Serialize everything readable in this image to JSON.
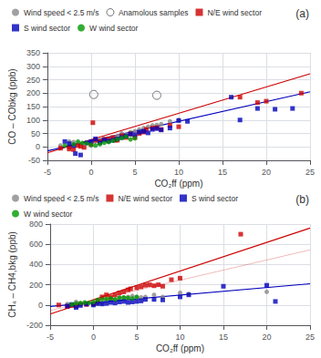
{
  "chart_data": [
    {
      "type": "scatter",
      "title": "(a)",
      "xlabel": "CO₂ff (ppm)",
      "ylabel": "CO – CObkg (ppb)",
      "xlim": [
        -5,
        25
      ],
      "ylim": [
        -50,
        350
      ],
      "xticks": [
        -5,
        0,
        5,
        10,
        15,
        20,
        25
      ],
      "yticks": [
        -50,
        0,
        50,
        100,
        150,
        200,
        250,
        300,
        350
      ],
      "grid": true,
      "legend": "upper left",
      "series": [
        {
          "name": "Wind speed < 2.5 m/s",
          "color": "#888888",
          "marker": "circle",
          "x": [
            -3.5,
            -2.5,
            -2,
            -1.5,
            -1,
            0,
            0.5,
            1,
            1.5,
            2,
            2.5,
            3,
            3.5,
            4,
            4.5,
            5,
            5.5,
            6,
            6.5,
            7,
            7.5,
            8,
            9,
            10
          ],
          "values": [
            5,
            20,
            18,
            12,
            10,
            5,
            20,
            25,
            30,
            20,
            35,
            40,
            50,
            45,
            55,
            58,
            65,
            70,
            75,
            80,
            82,
            85,
            95,
            100
          ]
        },
        {
          "name": "Anamolous samples",
          "color": "#555555",
          "marker": "open_circle",
          "x": [
            0.3,
            7.5
          ],
          "values": [
            195,
            192
          ]
        },
        {
          "name": "N/E wind sector",
          "color": "#cc0000",
          "marker": "square",
          "x": [
            -3.5,
            -2.5,
            -2.5,
            -2,
            -1.5,
            -1.2,
            -0.8,
            0,
            0.2,
            0.5,
            1,
            1.5,
            2,
            2.5,
            2.8,
            3,
            3.5,
            4,
            4.5,
            5,
            5.5,
            6,
            6.3,
            7,
            7.5,
            8,
            9,
            10,
            17,
            19,
            20,
            24
          ],
          "values": [
            -5,
            0,
            -8,
            -10,
            5,
            2,
            -2,
            10,
            90,
            25,
            20,
            28,
            30,
            35,
            25,
            25,
            42,
            35,
            48,
            35,
            50,
            55,
            65,
            70,
            72,
            65,
            80,
            75,
            185,
            165,
            170,
            200
          ]
        },
        {
          "name": "S wind sector",
          "color": "#0000bb",
          "marker": "square",
          "x": [
            -3,
            -2.5,
            -2,
            -1.8,
            -1.2,
            -0.5,
            0,
            0.5,
            1,
            1.5,
            2,
            2.5,
            3,
            3.5,
            4,
            4.5,
            5,
            5.5,
            6,
            6.5,
            7,
            7.5,
            8,
            9,
            10,
            11,
            16,
            17,
            19,
            21,
            23
          ],
          "values": [
            20,
            12,
            5,
            -25,
            -30,
            15,
            20,
            30,
            15,
            25,
            22,
            25,
            30,
            35,
            40,
            48,
            45,
            55,
            58,
            52,
            65,
            68,
            63,
            70,
            98,
            95,
            185,
            100,
            143,
            140,
            143
          ]
        },
        {
          "name": "W wind sector",
          "color": "#009900",
          "marker": "circle",
          "x": [
            -3,
            -2,
            -1.5,
            -1,
            -0.5,
            0,
            0.5,
            1,
            1.5,
            2,
            2.5,
            3,
            3.5,
            4,
            4.5,
            5
          ],
          "values": [
            5,
            10,
            20,
            15,
            13,
            8,
            5,
            10,
            15,
            18,
            23,
            28,
            33,
            38,
            28,
            32
          ]
        },
        {
          "type": "line",
          "color": "#cc0000",
          "line_style": "solid",
          "x": [
            -5,
            25
          ],
          "values": [
            -22,
            272
          ]
        },
        {
          "type": "line",
          "color": "#0000bb",
          "line_style": "solid",
          "x": [
            -5,
            25
          ],
          "values": [
            -15,
            205
          ]
        }
      ]
    },
    {
      "type": "scatter",
      "title": "(b)",
      "xlabel": "CO₂ff (ppm)",
      "ylabel": "CH₄ – CH4,bkg (ppb)",
      "xlim": [
        -5,
        25
      ],
      "ylim": [
        -200,
        800
      ],
      "xticks": [
        -5,
        0,
        5,
        10,
        15,
        20,
        25
      ],
      "yticks": [
        -200,
        0,
        200,
        400,
        600,
        800
      ],
      "grid": true,
      "legend": "upper left",
      "series": [
        {
          "name": "Wind speed < 2.5 m/s",
          "color": "#888888",
          "marker": "circle",
          "x": [
            -3,
            -2,
            -1,
            0,
            0.5,
            1,
            1.5,
            2,
            2.5,
            3,
            3.5,
            4,
            4.5,
            5,
            5.5,
            6,
            7,
            8,
            10,
            11,
            20
          ],
          "values": [
            10,
            30,
            15,
            5,
            10,
            20,
            50,
            60,
            55,
            75,
            70,
            80,
            90,
            80,
            75,
            80,
            100,
            80,
            120,
            110,
            130
          ]
        },
        {
          "name": "N/E wind sector",
          "color": "#cc0000",
          "marker": "square",
          "x": [
            -4,
            -3,
            -2.5,
            -2,
            -1.5,
            -0.8,
            0,
            0.5,
            1,
            1.5,
            2,
            2.5,
            3,
            3.5,
            4,
            4.3,
            5,
            5.5,
            6,
            6.5,
            7,
            7.5,
            8,
            9,
            10,
            17
          ],
          "values": [
            0,
            -15,
            -5,
            -10,
            10,
            5,
            10,
            40,
            80,
            100,
            80,
            100,
            120,
            130,
            150,
            160,
            170,
            180,
            195,
            200,
            190,
            200,
            185,
            250,
            265,
            700
          ]
        },
        {
          "name": "S wind sector",
          "color": "#0000bb",
          "marker": "square",
          "x": [
            -3,
            -2.5,
            -2,
            -1.5,
            -0.8,
            0,
            0.5,
            1,
            1.5,
            2,
            2.5,
            3,
            3.5,
            4,
            4.5,
            5,
            5.5,
            6,
            7,
            8,
            10,
            11,
            15,
            20,
            21
          ],
          "values": [
            -10,
            5,
            -25,
            -5,
            10,
            0,
            15,
            10,
            15,
            25,
            20,
            30,
            35,
            25,
            30,
            35,
            40,
            55,
            55,
            50,
            80,
            100,
            185,
            195,
            35
          ]
        },
        {
          "name": "W wind sector",
          "color": "#009900",
          "marker": "circle",
          "x": [
            -2.5,
            -2,
            -1.5,
            -1,
            -0.5,
            0,
            0.5,
            1,
            1.5,
            2,
            2.5,
            3,
            3.5,
            4,
            4.5,
            5
          ],
          "values": [
            5,
            15,
            20,
            25,
            20,
            30,
            50,
            55,
            60,
            65,
            55,
            70,
            75,
            70,
            65,
            80
          ]
        },
        {
          "type": "line",
          "color": "#cc0000",
          "line_style": "solid",
          "x": [
            -5,
            25
          ],
          "values": [
            -90,
            760
          ]
        },
        {
          "type": "line",
          "color": "#cc0000",
          "line_style": "faint",
          "x": [
            -5,
            25
          ],
          "values": [
            -55,
            545
          ]
        },
        {
          "type": "line",
          "color": "#0000bb",
          "line_style": "solid",
          "x": [
            -5,
            25
          ],
          "values": [
            -15,
            210
          ]
        }
      ]
    }
  ]
}
